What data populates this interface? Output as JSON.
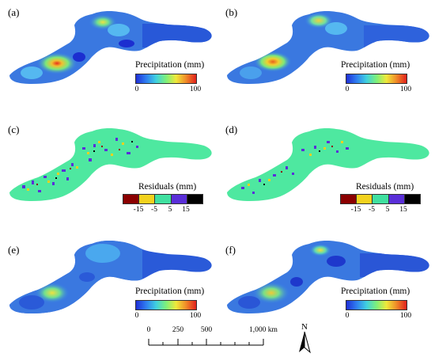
{
  "panels": [
    {
      "id": "a",
      "label": "(a)",
      "legend": {
        "title": "Precipitation (mm)",
        "ticks": [
          "0",
          "100"
        ],
        "type": "continuous"
      }
    },
    {
      "id": "b",
      "label": "(b)",
      "legend": {
        "title": "Precipitation (mm)",
        "ticks": [
          "0",
          "100"
        ],
        "type": "continuous"
      }
    },
    {
      "id": "c",
      "label": "(c)",
      "legend": {
        "title": "Residuals (mm)",
        "ticks": [
          "-15",
          "-5",
          "5",
          "15"
        ],
        "type": "discrete"
      }
    },
    {
      "id": "d",
      "label": "(d)",
      "legend": {
        "title": "Residuals (mm)",
        "ticks": [
          "-15",
          "-5",
          "5",
          "15"
        ],
        "type": "discrete"
      }
    },
    {
      "id": "e",
      "label": "(e)",
      "legend": {
        "title": "Precipitation (mm)",
        "ticks": [
          "0",
          "100"
        ],
        "type": "continuous"
      }
    },
    {
      "id": "f",
      "label": "(f)",
      "legend": {
        "title": "Precipitation (mm)",
        "ticks": [
          "0",
          "100"
        ],
        "type": "continuous"
      }
    }
  ],
  "scale_bar": {
    "labels": [
      "0",
      "250",
      "500",
      "1,000 km"
    ]
  },
  "north_arrow": {
    "label": "N"
  },
  "colors": {
    "precip_gradient": [
      "#1f2fd6",
      "#2f7df0",
      "#3fd0e0",
      "#7df07a",
      "#f0e83a",
      "#f08a28",
      "#e0201c"
    ],
    "residual_classes": [
      "#8b0000",
      "#f2d21e",
      "#40e0a0",
      "#5a2fd8",
      "#000000"
    ],
    "residual_base": "#4ee8a0",
    "precip_base": "#3a78e0"
  }
}
